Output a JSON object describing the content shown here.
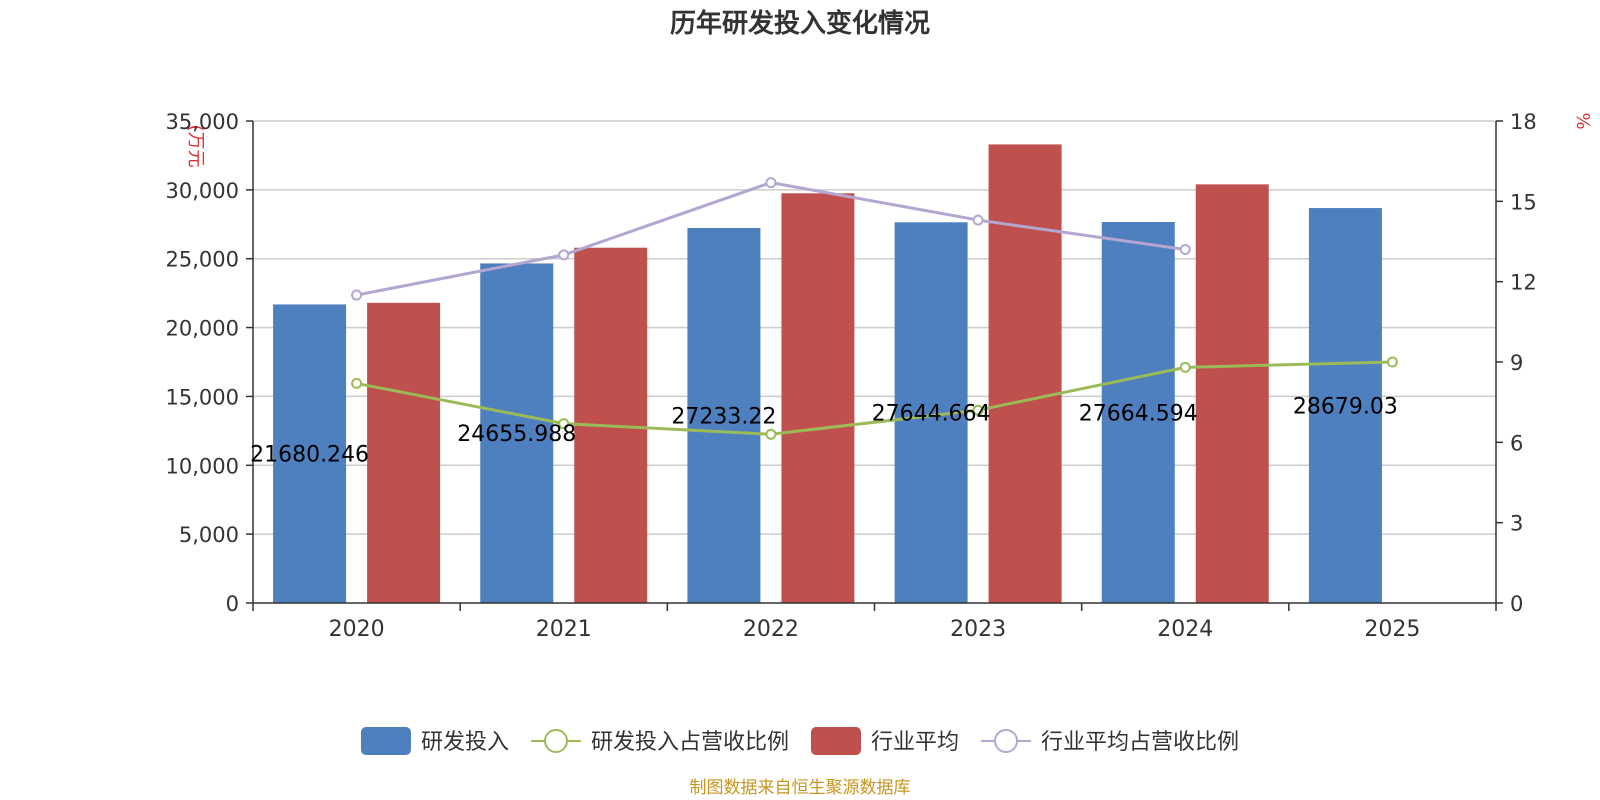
{
  "chart_data": {
    "type": "bar",
    "title": "历年研发投入变化情况",
    "categories": [
      "2020",
      "2021",
      "2022",
      "2023",
      "2024",
      "2025"
    ],
    "y_left": {
      "unit": "(万元",
      "ylim": [
        0,
        35000
      ],
      "ticks": [
        0,
        5000,
        10000,
        15000,
        20000,
        25000,
        30000,
        35000
      ],
      "tick_labels": [
        "0",
        "5,000",
        "10,000",
        "15,000",
        "20,000",
        "25,000",
        "30,000",
        "35,000"
      ]
    },
    "y_right": {
      "unit": "%",
      "ylim": [
        0,
        18
      ],
      "ticks": [
        0,
        3,
        6,
        9,
        12,
        15,
        18
      ],
      "tick_labels": [
        "0",
        "3",
        "6",
        "9",
        "12",
        "15",
        "18"
      ]
    },
    "series": [
      {
        "name": "研发投入",
        "type": "bar",
        "axis": "left",
        "color": "#4e7fbf",
        "values": [
          21680.246,
          24655.988,
          27233.22,
          27644.664,
          27664.594,
          28679.03
        ],
        "labels": [
          "21680.246",
          "24655.988",
          "27233.22",
          "27644.664",
          "27664.594",
          "28679.03"
        ]
      },
      {
        "name": "研发投入占营收比例",
        "type": "line",
        "axis": "right",
        "color": "#9bbb59",
        "values": [
          8.2,
          6.7,
          6.3,
          7.2,
          8.8,
          9.0
        ]
      },
      {
        "name": "行业平均",
        "type": "bar",
        "axis": "left",
        "color": "#c0504d",
        "values": [
          21800,
          25800,
          29750,
          33300,
          30400,
          null
        ]
      },
      {
        "name": "行业平均占营收比例",
        "type": "line",
        "axis": "right",
        "color": "#b3a7d1",
        "values": [
          11.5,
          13.0,
          15.7,
          14.3,
          13.2,
          null
        ]
      }
    ],
    "grid": true,
    "legend_position": "bottom"
  },
  "source_note": "制图数据来自恒生聚源数据库"
}
